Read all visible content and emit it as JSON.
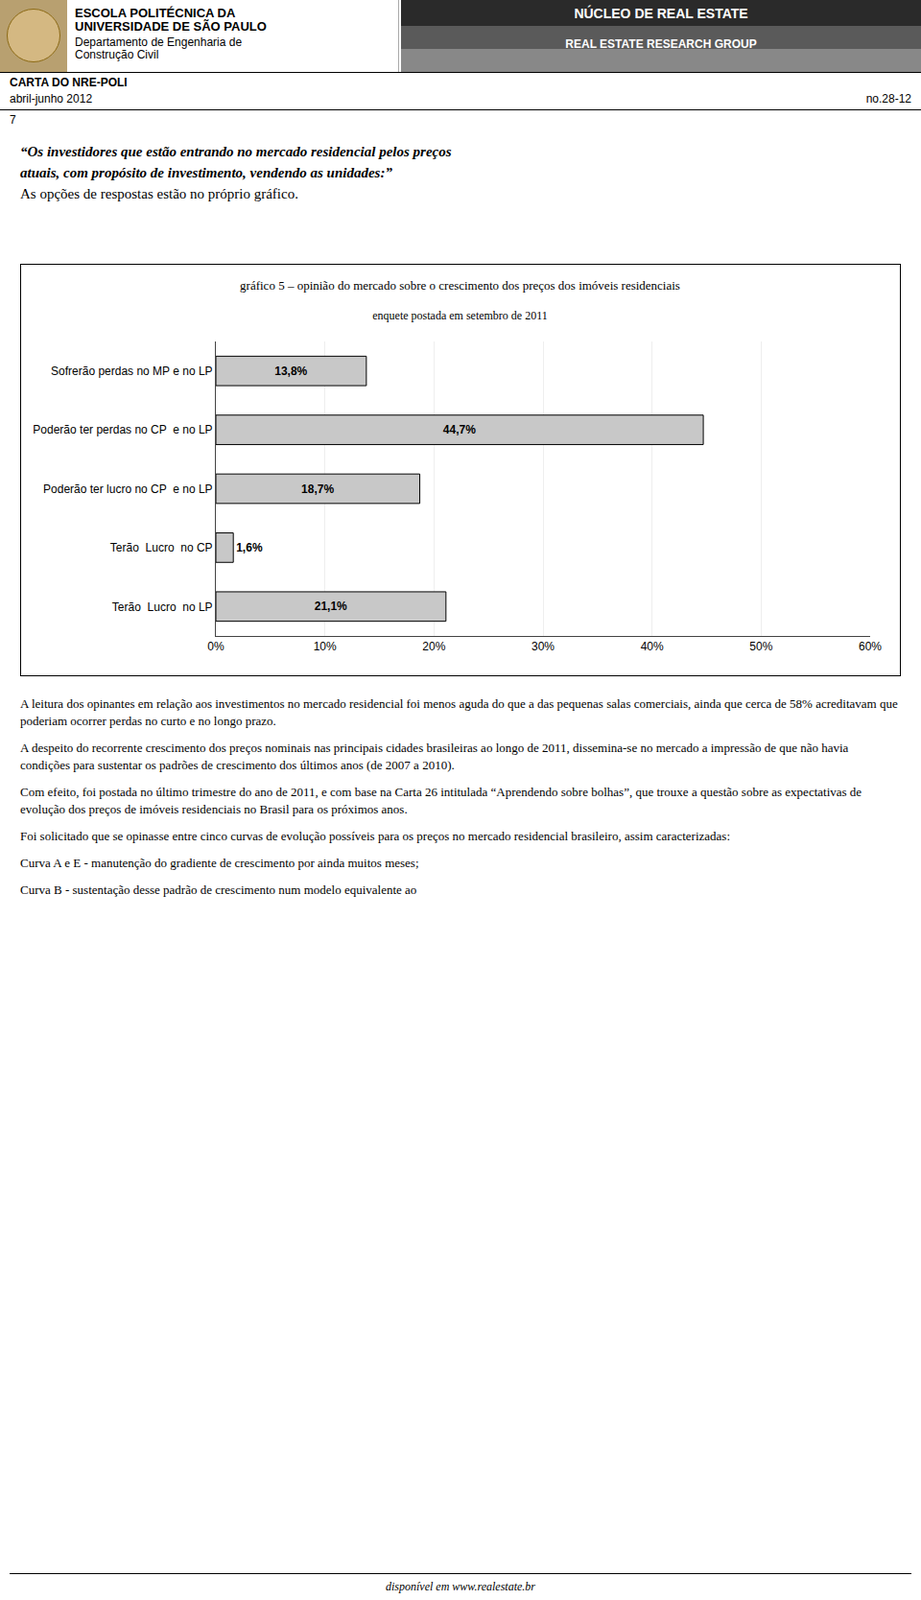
{
  "chart_data": {
    "type": "bar",
    "orientation": "horizontal",
    "title": "gráfico 5 – opinião do mercado sobre o crescimento dos preços dos imóveis residenciais",
    "subtitle": "enquete postada em setembro de 2011",
    "categories": [
      "Sofrerão perdas no MP e no LP",
      "Poderão ter perdas no CP  e no LP",
      "Poderão ter lucro no CP  e no LP",
      "Terão  Lucro  no CP",
      "Terão  Lucro  no LP"
    ],
    "values": [
      13.8,
      44.7,
      18.7,
      1.6,
      21.1
    ],
    "value_labels": [
      "13,8%",
      "44,7%",
      "18,7%",
      "1,6%",
      "21,1%"
    ],
    "data_labels": true,
    "color": "#c8c8c8",
    "xlim": [
      0,
      60
    ],
    "xticks": [
      {
        "value": 0,
        "label": "0%"
      },
      {
        "value": 10,
        "label": "10%"
      },
      {
        "value": 20,
        "label": "20%"
      },
      {
        "value": 30,
        "label": "30%"
      },
      {
        "value": 40,
        "label": "40%"
      },
      {
        "value": 50,
        "label": "50%"
      },
      {
        "value": 60,
        "label": "60%"
      }
    ],
    "grid": true,
    "annotations": [
      "ESCOLA POLITÉCNICA DA",
      "UNIVERSIDADE DE SÃO PAULO",
      "Departamento de Engenharia de",
      "Construção Civil",
      "NÚCLEO DE REAL ESTATE",
      "REAL ESTATE RESEARCH GROUP",
      "CARTA DO NRE-POLI",
      "abril-junho 2012",
      "no.28-12",
      "7",
      "“Os investidores que estão entrando no mercado residencial pelos preços",
      "atuais, com propósito de investimento, vendendo as unidades:”",
      " As opções de respostas estão no próprio gráfico.",
      "A leitura dos opinantes em relação aos investimentos no mercado residencial foi menos aguda do que a das pequenas salas comerciais, ainda que cerca de 58% acreditavam que poderiam ocorrer perdas no curto e no longo prazo.",
      "A despeito do recorrente crescimento dos preços nominais nas principais cidades brasileiras ao longo de 2011, dissemina-se no mercado a impressão de que não havia condições para sustentar os padrões de crescimento dos últimos anos (de 2007 a 2010).",
      "Com efeito, foi postada no último trimestre do ano de 2011, e com base na Carta 26 intitulada “Aprendendo sobre bolhas”, que trouxe a questão sobre as expectativas de evolução dos preços de imóveis residenciais no Brasil para os próximos anos.",
      "Foi solicitado que se opinasse entre cinco curvas de evolução possíveis para os preços no mercado residencial brasileiro, assim caracterizadas:",
      "Curva A e E - manutenção do gradiente de crescimento por ainda muitos meses;",
      "Curva B - sustentação desse padrão de crescimento num modelo equivalente ao",
      "disponível em www.realestate.br"
    ]
  }
}
